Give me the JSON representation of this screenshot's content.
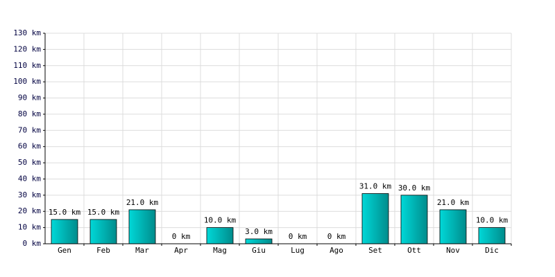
{
  "chart_data": {
    "type": "bar",
    "categories": [
      "Gen",
      "Feb",
      "Mar",
      "Apr",
      "Mag",
      "Giu",
      "Lug",
      "Ago",
      "Set",
      "Ott",
      "Nov",
      "Dic"
    ],
    "values": [
      15,
      15,
      21,
      0,
      10,
      3,
      0,
      0,
      31,
      30,
      21,
      10
    ],
    "value_labels": [
      "15.0 km",
      "15.0 km",
      "21.0 km",
      "0 km",
      "10.0 km",
      "3.0 km",
      "0 km",
      "0 km",
      "31.0 km",
      "30.0 km",
      "21.0 km",
      "10.0 km"
    ],
    "color": "#00d8d8",
    "ylim": [
      0,
      130
    ],
    "yticks": [
      {
        "value": 0,
        "label": "0 km"
      },
      {
        "value": 10,
        "label": "10 km"
      },
      {
        "value": 20,
        "label": "20 km"
      },
      {
        "value": 30,
        "label": "30 km"
      },
      {
        "value": 40,
        "label": "40 km"
      },
      {
        "value": 50,
        "label": "50 km"
      },
      {
        "value": 60,
        "label": "60 km"
      },
      {
        "value": 70,
        "label": "70 km"
      },
      {
        "value": 80,
        "label": "80 km"
      },
      {
        "value": 90,
        "label": "90 km"
      },
      {
        "value": 100,
        "label": "100 km"
      },
      {
        "value": 110,
        "label": "110 km"
      },
      {
        "value": 120,
        "label": "120 km"
      },
      {
        "value": 130,
        "label": "130 km"
      }
    ],
    "grid": true
  }
}
